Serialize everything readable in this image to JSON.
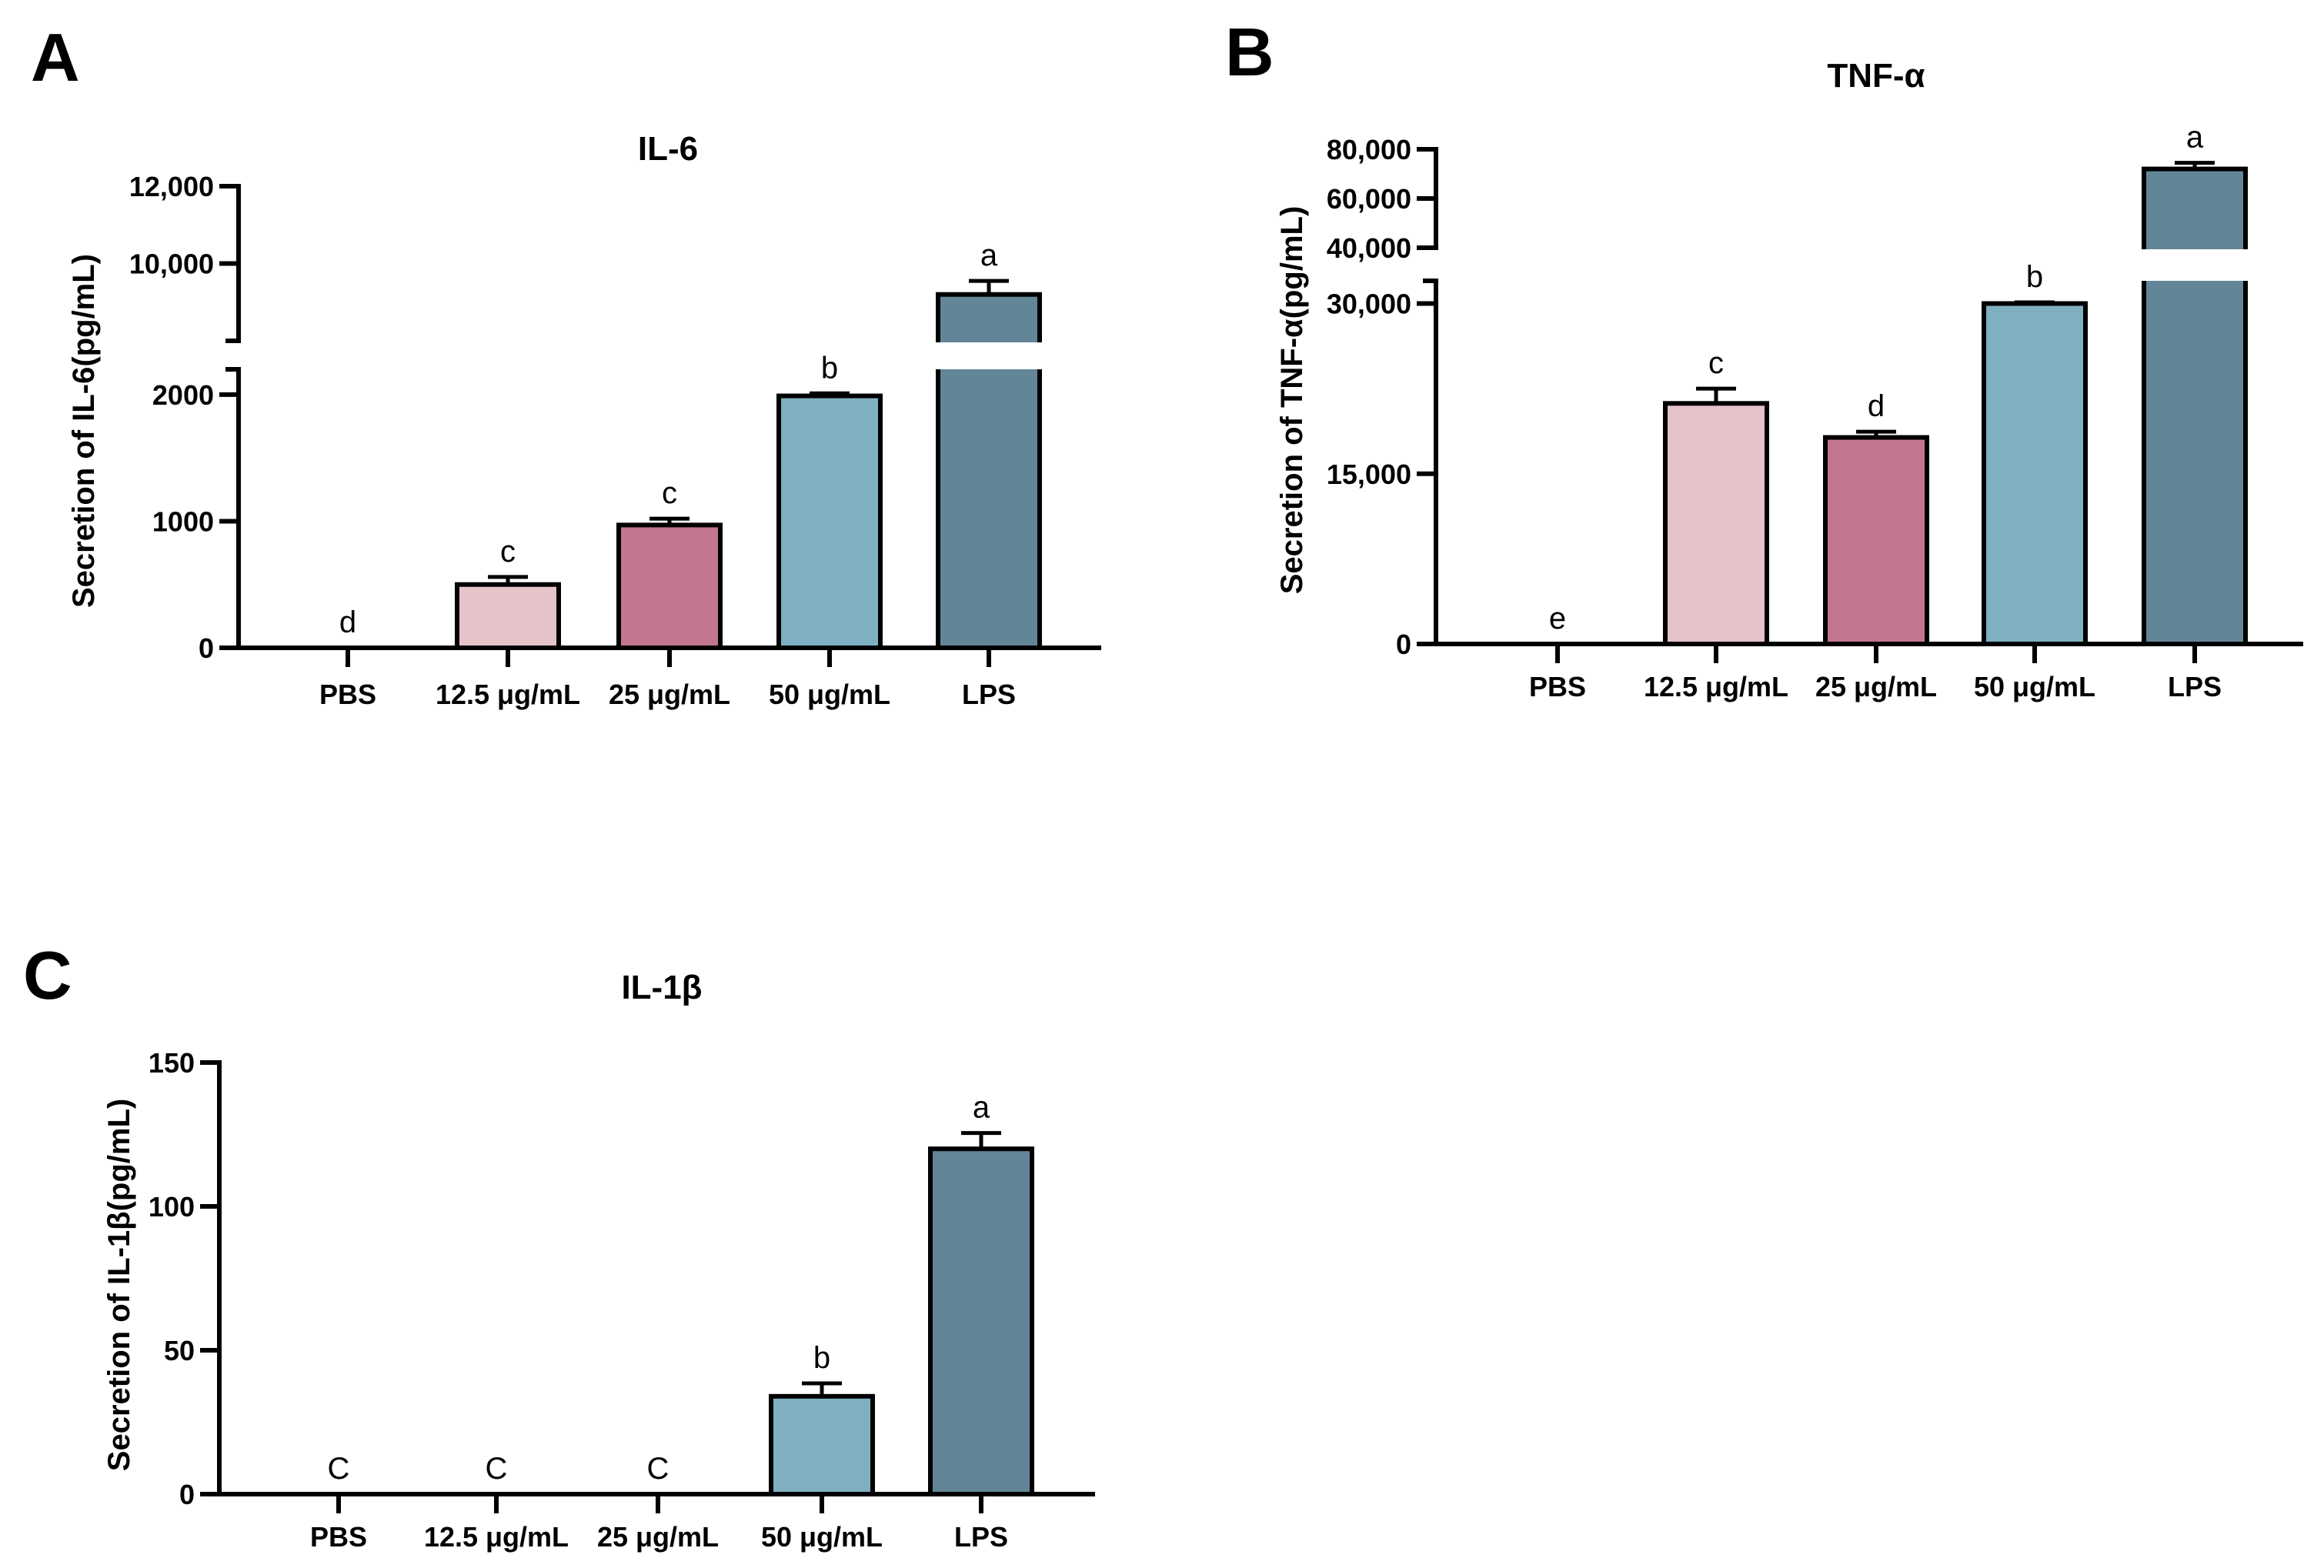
{
  "chart_data": [
    {
      "panel": "A",
      "type": "bar",
      "title": "IL-6",
      "ylabel": "Secretion of IL-6(pg/mL)",
      "xlabel": "",
      "categories": [
        "PBS",
        "12.5 μg/mL",
        "25 μg/mL",
        "50 μg/mL",
        "LPS"
      ],
      "values": [
        0,
        500,
        970,
        1990,
        9200
      ],
      "errors": [
        0,
        60,
        50,
        20,
        350
      ],
      "significance": [
        "d",
        "c",
        "c",
        "b",
        "a"
      ],
      "colors": [
        "#ffffff",
        "#e4c3c9",
        "#c2778e",
        "#7fb0c2",
        "#628698"
      ],
      "axis_break": true,
      "lower_range": [
        0,
        2200
      ],
      "upper_range": [
        8000,
        12000
      ],
      "lower_ticks": [
        0,
        1000,
        2000
      ],
      "lower_tick_labels": [
        "0",
        "1000",
        "2000"
      ],
      "upper_ticks": [
        10000,
        12000
      ],
      "upper_tick_labels": [
        "10,000",
        "12,000"
      ]
    },
    {
      "panel": "B",
      "type": "bar",
      "title": "TNF-α",
      "ylabel": "Secretion of TNF-α(pg/mL)",
      "xlabel": "",
      "categories": [
        "PBS",
        "12.5 μg/mL",
        "25 μg/mL",
        "50 μg/mL",
        "LPS"
      ],
      "values": [
        0,
        21200,
        18200,
        30000,
        72000
      ],
      "errors": [
        0,
        1300,
        500,
        100,
        2500
      ],
      "significance": [
        "e",
        "c",
        "d",
        "b",
        "a"
      ],
      "colors": [
        "#ffffff",
        "#e4c3c9",
        "#c2778e",
        "#7fb0c2",
        "#628698"
      ],
      "axis_break": true,
      "lower_range": [
        0,
        32000
      ],
      "upper_range": [
        40000,
        80000
      ],
      "lower_ticks": [
        0,
        15000,
        30000
      ],
      "lower_tick_labels": [
        "0",
        "15,000",
        "30,000"
      ],
      "upper_ticks": [
        40000,
        60000,
        80000
      ],
      "upper_tick_labels": [
        "40,000",
        "60,000",
        "80,000"
      ]
    },
    {
      "panel": "C",
      "type": "bar",
      "title": "IL-1β",
      "ylabel": "Secretion of IL-1β(pg/mL)",
      "xlabel": "",
      "categories": [
        "PBS",
        "12.5 μg/mL",
        "25 μg/mL",
        "50 μg/mL",
        "LPS"
      ],
      "values": [
        0,
        0,
        0,
        34,
        120
      ],
      "errors": [
        0,
        0,
        0,
        4.5,
        5.5
      ],
      "significance": [
        "C",
        "C",
        "C",
        "b",
        "a"
      ],
      "colors": [
        "#ffffff",
        "#e4c3c9",
        "#c2778e",
        "#7fb0c2",
        "#628698"
      ],
      "axis_break": false,
      "lower_range": [
        0,
        150
      ],
      "lower_ticks": [
        0,
        50,
        100,
        150
      ],
      "lower_tick_labels": [
        "0",
        "50",
        "100",
        "150"
      ]
    }
  ]
}
